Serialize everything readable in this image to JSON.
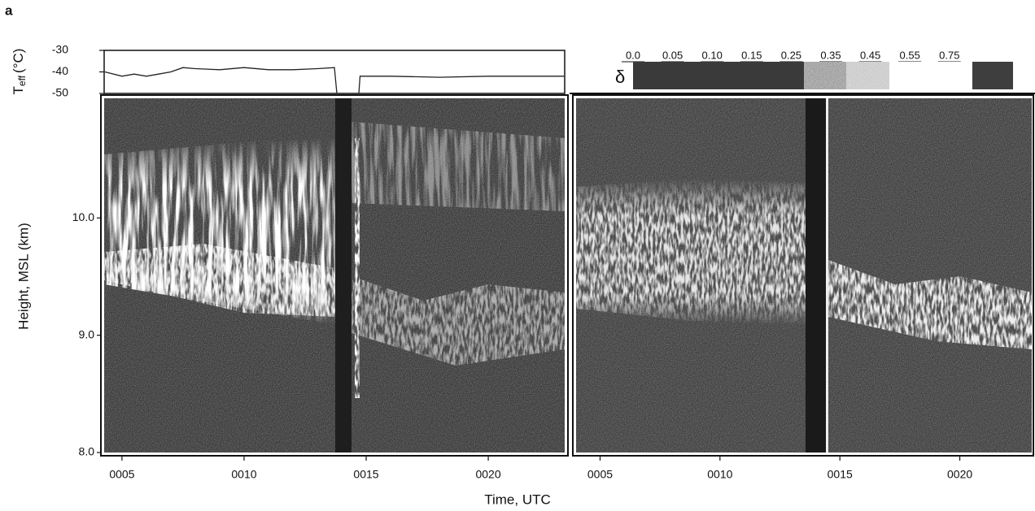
{
  "panel_label": "a",
  "temperature_panel": {
    "y_label": "T",
    "y_label_sub": "eff",
    "y_label_unit": "(°C)",
    "ylim": [
      -50,
      -30
    ],
    "yticks": [
      -30,
      -40,
      -50
    ],
    "color": "#222222",
    "trace": {
      "x": [
        4.3,
        5,
        5.5,
        6,
        6.5,
        7,
        7.5,
        8,
        9,
        10,
        11,
        12,
        13,
        13.7,
        13.8,
        null,
        14.7,
        14.75,
        16,
        18,
        20,
        22,
        23.1
      ],
      "values": [
        -40,
        -42,
        -41,
        -42,
        -41,
        -40,
        -38,
        -38.5,
        -39,
        -38,
        -39,
        -39,
        -38.5,
        -38,
        -50,
        null,
        -50,
        -42,
        -42,
        -42.5,
        -42,
        -42,
        -42
      ]
    }
  },
  "height_axis": {
    "label": "Height, MSL (km)",
    "ylim": [
      8,
      11.02
    ],
    "yticks": [
      {
        "value": 10,
        "label": "10.0"
      },
      {
        "value": 9,
        "label": "9.0"
      },
      {
        "value": 8,
        "label": "8.0"
      }
    ]
  },
  "time_axis": {
    "label": "Time, UTC",
    "left_xlim": [
      4.27,
      23.13
    ],
    "right_xlim": [
      4.0,
      23.0
    ],
    "xticks": [
      {
        "value": 5,
        "label": "0005"
      },
      {
        "value": 10,
        "label": "0010"
      },
      {
        "value": 15,
        "label": "0015"
      },
      {
        "value": 20,
        "label": "0020"
      }
    ]
  },
  "colorbar": {
    "symbol": "δ",
    "ticks": [
      {
        "value": 0,
        "label": "0.0"
      },
      0.05,
      {
        "value": 0.1,
        "label": "0.10"
      },
      0.15,
      0.25,
      0.35,
      0.45,
      0.55,
      0.75
    ],
    "colors": [
      "#3a3a3a",
      "#9a9a9a",
      "#c8c8c8",
      "#ffffff",
      "#3e3e3e"
    ]
  }
}
